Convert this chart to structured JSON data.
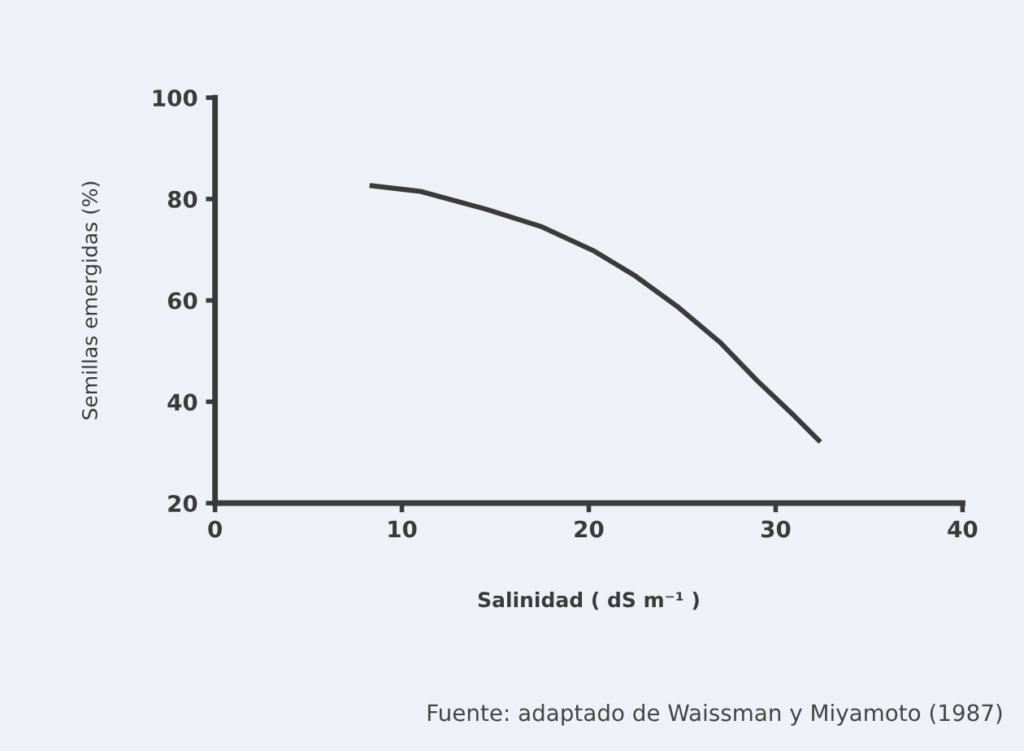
{
  "chart_data": {
    "type": "line",
    "xlabel": "Salinidad ( dS m⁻¹ )",
    "ylabel": "Semillas emergidas (%)",
    "annotations": [
      "Fuente: adaptado de Waissman y Miyamoto (1987)"
    ],
    "series": [
      {
        "color": "#3a3a3a",
        "x": [
          8.4,
          11,
          14.5,
          17.5,
          20.3,
          22.5,
          24.7,
          27,
          29,
          31,
          32.3
        ],
        "values": [
          82.6,
          81.5,
          78.0,
          74.5,
          69.7,
          64.8,
          58.9,
          51.8,
          44.2,
          37.2,
          32.4
        ]
      }
    ],
    "xlim": [
      0,
      40
    ],
    "ylim": [
      20,
      100
    ],
    "xticks": [
      0,
      10,
      20,
      30,
      40
    ],
    "yticks": [
      20,
      40,
      60,
      80,
      100
    ],
    "grid": false,
    "legend": false,
    "marker": "none",
    "line_style": "solid"
  }
}
